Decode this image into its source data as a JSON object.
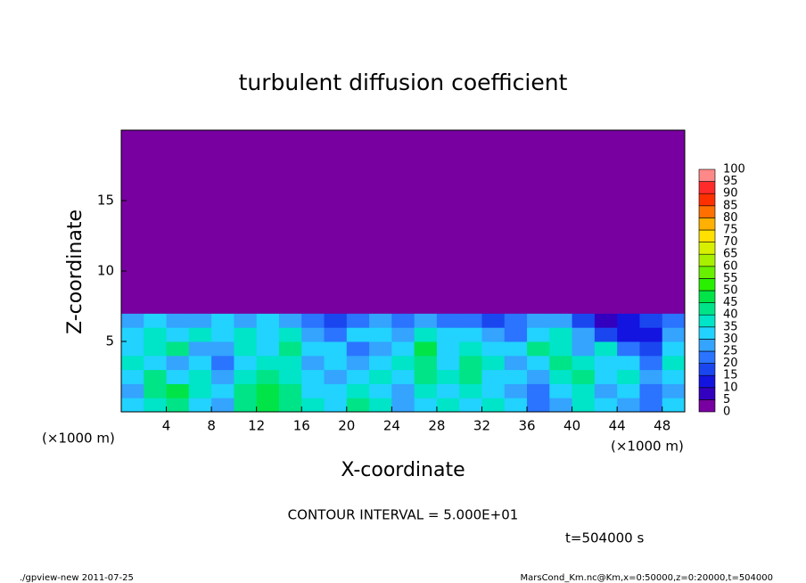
{
  "chart_data": {
    "type": "heatmap",
    "title": "turbulent diffusion coefficient",
    "x_label": "X-coordinate",
    "y_label": "Z-coordinate",
    "x_unit": "(×1000 m)",
    "y_unit": "(×1000 m)",
    "annotation": "CONTOUR INTERVAL = 5.000E+01",
    "time_label": "t=504000 s",
    "footer_left": "./gpview-new  2011-07-25",
    "footer_right": "MarsCond_Km.nc@Km,x=0:50000,z=0:20000,t=504000",
    "xlim": [
      0,
      50
    ],
    "ylim": [
      0,
      20
    ],
    "xticks": [
      4,
      8,
      12,
      16,
      20,
      24,
      28,
      32,
      36,
      40,
      44,
      48
    ],
    "yticks": [
      5,
      10,
      15
    ],
    "x_bins": [
      0,
      2,
      4,
      6,
      8,
      10,
      12,
      14,
      16,
      18,
      20,
      22,
      24,
      26,
      28,
      30,
      32,
      34,
      36,
      38,
      40,
      42,
      44,
      46,
      48,
      50
    ],
    "y_bins": [
      0,
      1,
      2,
      3,
      4,
      5,
      6,
      7,
      20
    ],
    "z": [
      [
        30,
        35,
        40,
        30,
        25,
        40,
        45,
        40,
        35,
        30,
        40,
        35,
        25,
        30,
        35,
        30,
        35,
        30,
        20,
        25,
        35,
        30,
        25,
        20,
        30
      ],
      [
        25,
        40,
        45,
        35,
        30,
        40,
        45,
        40,
        30,
        30,
        35,
        30,
        25,
        35,
        30,
        35,
        30,
        25,
        20,
        30,
        35,
        25,
        30,
        20,
        25
      ],
      [
        30,
        40,
        30,
        35,
        25,
        35,
        40,
        35,
        30,
        25,
        30,
        35,
        30,
        40,
        35,
        40,
        30,
        30,
        25,
        35,
        40,
        30,
        35,
        25,
        30
      ],
      [
        35,
        30,
        25,
        30,
        20,
        30,
        35,
        35,
        25,
        30,
        25,
        30,
        35,
        40,
        30,
        40,
        35,
        25,
        30,
        40,
        35,
        30,
        30,
        20,
        35
      ],
      [
        30,
        35,
        40,
        25,
        25,
        35,
        30,
        40,
        30,
        30,
        20,
        25,
        30,
        45,
        30,
        35,
        30,
        30,
        40,
        35,
        25,
        35,
        20,
        15,
        30
      ],
      [
        30,
        35,
        30,
        35,
        30,
        35,
        30,
        35,
        25,
        20,
        30,
        30,
        25,
        35,
        30,
        30,
        25,
        20,
        30,
        35,
        25,
        15,
        10,
        10,
        25
      ],
      [
        25,
        30,
        25,
        25,
        30,
        25,
        30,
        25,
        20,
        15,
        20,
        25,
        20,
        25,
        20,
        20,
        15,
        20,
        25,
        25,
        15,
        5,
        10,
        15,
        20
      ],
      [
        0,
        0,
        0,
        0,
        0,
        0,
        0,
        0,
        0,
        0,
        0,
        0,
        0,
        0,
        0,
        0,
        0,
        0,
        0,
        0,
        0,
        0,
        0,
        0,
        0
      ]
    ],
    "levels": [
      0,
      5,
      10,
      15,
      20,
      25,
      30,
      35,
      40,
      45,
      50,
      55,
      60,
      65,
      70,
      75,
      80,
      85,
      90,
      95,
      100
    ],
    "colors": [
      "#7800a0",
      "#3400c0",
      "#1414e0",
      "#1a46f0",
      "#2a74ff",
      "#34a4ff",
      "#22d2ff",
      "#00e4c8",
      "#00e488",
      "#00e448",
      "#28f000",
      "#68f000",
      "#a8f000",
      "#d8f000",
      "#ffe000",
      "#ffb000",
      "#ff7000",
      "#ff3000",
      "#ff2a2a",
      "#ff8888"
    ]
  }
}
